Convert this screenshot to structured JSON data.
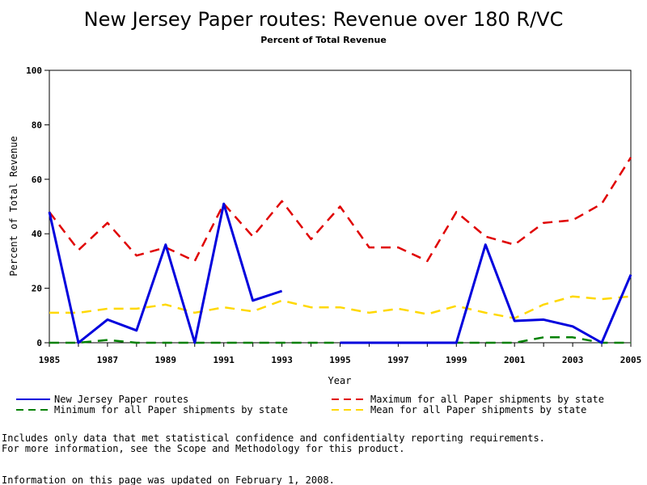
{
  "chart_data": {
    "type": "line",
    "title": "New Jersey Paper routes: Revenue over 180 R/VC",
    "subtitle": "Percent of Total Revenue",
    "xlabel": "Year",
    "ylabel": "Percent of Total Revenue",
    "xlim": [
      1985,
      2005
    ],
    "ylim": [
      0,
      100
    ],
    "x_ticks": [
      "1985",
      "1987",
      "1989",
      "1991",
      "1993",
      "1995",
      "1997",
      "1999",
      "2001",
      "2003",
      "2005"
    ],
    "y_ticks": [
      "0",
      "20",
      "40",
      "60",
      "80",
      "100"
    ],
    "grid": false,
    "legend_position": "bottom",
    "series": [
      {
        "name": "New Jersey Paper routes",
        "color": "#0000dd",
        "style": "solid",
        "points": [
          [
            1985,
            48
          ],
          [
            1986,
            0
          ],
          [
            1987,
            8.5
          ],
          [
            1988,
            4.5
          ],
          [
            1989,
            36
          ],
          [
            1990,
            0
          ],
          [
            1991,
            51
          ],
          [
            1992,
            15.5
          ],
          [
            1993,
            19
          ],
          null,
          [
            1995,
            0
          ],
          [
            1996,
            0
          ],
          [
            1997,
            0
          ],
          [
            1998,
            0
          ],
          [
            1999,
            0
          ],
          [
            2000,
            36
          ],
          [
            2001,
            8
          ],
          [
            2002,
            8.5
          ],
          [
            2003,
            6
          ],
          [
            2004,
            0
          ],
          [
            2005,
            25
          ]
        ]
      },
      {
        "name": "Maximum for all Paper shipments by state",
        "color": "#e00000",
        "style": "dashed",
        "points": [
          [
            1985,
            48
          ],
          [
            1986,
            34
          ],
          [
            1987,
            44
          ],
          [
            1988,
            32
          ],
          [
            1989,
            35
          ],
          [
            1990,
            30
          ],
          [
            1991,
            51
          ],
          [
            1992,
            39
          ],
          [
            1993,
            52
          ],
          [
            1994,
            38
          ],
          [
            1995,
            50
          ],
          [
            1996,
            35
          ],
          [
            1997,
            35
          ],
          [
            1998,
            30
          ],
          [
            1999,
            48
          ],
          [
            2000,
            39
          ],
          [
            2001,
            36
          ],
          [
            2002,
            44
          ],
          [
            2003,
            45
          ],
          [
            2004,
            51
          ],
          [
            2005,
            68
          ]
        ]
      },
      {
        "name": "Minimum for all Paper shipments by state",
        "color": "#008000",
        "style": "dashed",
        "points": [
          [
            1985,
            0
          ],
          [
            1986,
            0
          ],
          [
            1987,
            1
          ],
          [
            1988,
            0
          ],
          [
            1989,
            0
          ],
          [
            1990,
            0
          ],
          [
            1991,
            0
          ],
          [
            1992,
            0
          ],
          [
            1993,
            0
          ],
          [
            1994,
            0
          ],
          [
            1995,
            0
          ],
          [
            1996,
            0
          ],
          [
            1997,
            0
          ],
          [
            1998,
            0
          ],
          [
            1999,
            0
          ],
          [
            2000,
            0
          ],
          [
            2001,
            0
          ],
          [
            2002,
            2
          ],
          [
            2003,
            2
          ],
          [
            2004,
            0
          ],
          [
            2005,
            0
          ]
        ]
      },
      {
        "name": "Mean for all Paper shipments by state",
        "color": "#ffd800",
        "style": "dashed",
        "points": [
          [
            1985,
            11
          ],
          [
            1986,
            11
          ],
          [
            1987,
            12.5
          ],
          [
            1988,
            12.5
          ],
          [
            1989,
            14
          ],
          [
            1990,
            11
          ],
          [
            1991,
            13
          ],
          [
            1992,
            11.5
          ],
          [
            1993,
            15.5
          ],
          [
            1994,
            13
          ],
          [
            1995,
            13
          ],
          [
            1996,
            11
          ],
          [
            1997,
            12.5
          ],
          [
            1998,
            10.5
          ],
          [
            1999,
            13.5
          ],
          [
            2000,
            11
          ],
          [
            2001,
            9
          ],
          [
            2002,
            14
          ],
          [
            2003,
            17
          ],
          [
            2004,
            16
          ],
          [
            2005,
            17
          ]
        ]
      }
    ]
  },
  "notes": {
    "line1": "Includes only data that met statistical confidence and confidentialty reporting requirements.",
    "line2": "For more information, see the Scope and Methodology for this product.",
    "updated": "Information on this page was updated on February 1, 2008."
  }
}
